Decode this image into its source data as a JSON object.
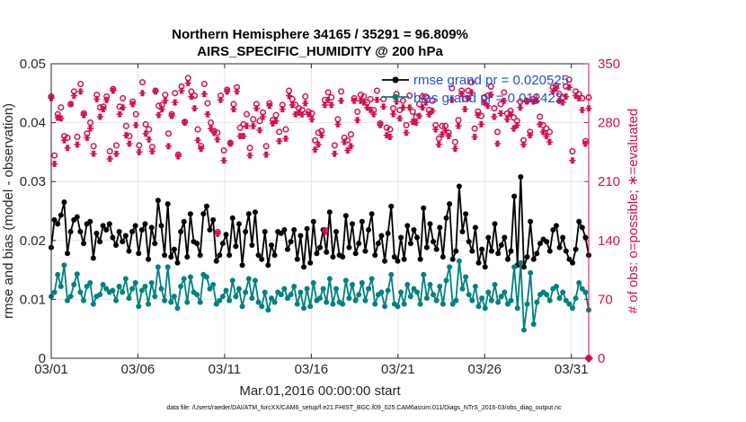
{
  "chart_data": {
    "type": "line",
    "title": "Northern Hemisphere 34165 / 35291 = 96.809%",
    "subtitle": "AIRS_SPECIFIC_HUMIDITY @ 200 hPa",
    "xlabel": "Mar.01,2016 00:00:00 start",
    "ylabel": "rmse and bias (model - observation)",
    "y2label": "# of obs: o=possible; ∗=evaluated",
    "xlim": [
      0,
      31
    ],
    "ylim": [
      0,
      0.05
    ],
    "y2lim": [
      0,
      350
    ],
    "x_ticks": [
      0,
      5,
      10,
      15,
      20,
      25,
      30
    ],
    "x_tick_labels": [
      "03/01",
      "03/06",
      "03/11",
      "03/16",
      "03/21",
      "03/26",
      "03/31"
    ],
    "y_tick_labels": [
      "0",
      "0.01",
      "0.02",
      "0.03",
      "0.04",
      "0.05"
    ],
    "y2_tick_labels": [
      "0",
      "70",
      "140",
      "210",
      "280",
      "350"
    ],
    "grid": true,
    "legend_position": "top-right",
    "series": [
      {
        "name": "rmse grand pr = 0.020525",
        "axis": "left",
        "color": "#000000",
        "marker": "filled-circle",
        "values": [
          0.0188,
          0.0235,
          0.0228,
          0.0243,
          0.0265,
          0.0178,
          0.0215,
          0.0235,
          0.024,
          0.0215,
          0.0195,
          0.0228,
          0.0232,
          0.017,
          0.0212,
          0.0198,
          0.0225,
          0.0218,
          0.0228,
          0.0205,
          0.0192,
          0.0215,
          0.0198,
          0.0208,
          0.0182,
          0.0215,
          0.0225,
          0.0178,
          0.0218,
          0.0228,
          0.0168,
          0.0222,
          0.0195,
          0.0268,
          0.0225,
          0.0175,
          0.0262,
          0.0172,
          0.0185,
          0.0162,
          0.0215,
          0.0232,
          0.0172,
          0.0245,
          0.0198,
          0.0195,
          0.0175,
          0.0245,
          0.0258,
          0.0218,
          0.0235,
          0.0165,
          0.0175,
          0.0195,
          0.021,
          0.0175,
          0.0238,
          0.019,
          0.0228,
          0.0158,
          0.0215,
          0.0245,
          0.0192,
          0.0248,
          0.0175,
          0.0168,
          0.0215,
          0.0158,
          0.0192,
          0.0175,
          0.0215,
          0.0212,
          0.0218,
          0.0185,
          0.0198,
          0.0218,
          0.0168,
          0.0208,
          0.0155,
          0.022,
          0.0162,
          0.0232,
          0.0178,
          0.0188,
          0.0218,
          0.018,
          0.0248,
          0.0172,
          0.0215,
          0.0175,
          0.0172,
          0.0242,
          0.0188,
          0.0228,
          0.0178,
          0.0195,
          0.0232,
          0.0182,
          0.0218,
          0.0245,
          0.0175,
          0.0195,
          0.0208,
          0.0165,
          0.0212,
          0.0258,
          0.0172,
          0.0165,
          0.0205,
          0.0168,
          0.0225,
          0.0195,
          0.0218,
          0.0205,
          0.0168,
          0.0255,
          0.0188,
          0.0228,
          0.0198,
          0.0185,
          0.0222,
          0.0172,
          0.0238,
          0.0262,
          0.0168,
          0.0182,
          0.0292,
          0.0215,
          0.0245,
          0.0198,
          0.0182,
          0.0222,
          0.0162,
          0.0185,
          0.0155,
          0.0205,
          0.0182,
          0.0228,
          0.0178,
          0.0192,
          0.0205,
          0.0168,
          0.0182,
          0.0275,
          0.0158,
          0.0308,
          0.0155,
          0.0172,
          0.0232,
          0.0168,
          0.0178,
          0.0195,
          0.0202,
          0.0198,
          0.0182,
          0.0218,
          0.0225,
          0.0188,
          0.0205,
          0.0182,
          0.0168,
          0.0162,
          0.0185,
          0.0232,
          0.0222,
          0.0205,
          0.0175
        ]
      },
      {
        "name": "bias grand pr = 0.011422",
        "axis": "left",
        "color": "#008080",
        "marker": "filled-circle",
        "values": [
          0.0105,
          0.0112,
          0.0142,
          0.0122,
          0.0158,
          0.0098,
          0.0105,
          0.0125,
          0.0143,
          0.0112,
          0.0098,
          0.0122,
          0.0128,
          0.0092,
          0.0105,
          0.0108,
          0.0125,
          0.0118,
          0.0112,
          0.0115,
          0.0098,
          0.0122,
          0.0112,
          0.0135,
          0.0102,
          0.0118,
          0.0128,
          0.0088,
          0.0115,
          0.0122,
          0.0092,
          0.0128,
          0.0105,
          0.0155,
          0.0118,
          0.0098,
          0.0155,
          0.0095,
          0.0105,
          0.0085,
          0.0122,
          0.0135,
          0.0095,
          0.0138,
          0.0112,
          0.0108,
          0.0095,
          0.0142,
          0.0138,
          0.0118,
          0.0125,
          0.0092,
          0.0098,
          0.0105,
          0.0115,
          0.0098,
          0.0132,
          0.0105,
          0.0118,
          0.0088,
          0.0112,
          0.0135,
          0.0102,
          0.0132,
          0.0095,
          0.0088,
          0.0112,
          0.0082,
          0.0102,
          0.0095,
          0.0112,
          0.0108,
          0.0118,
          0.0102,
          0.0108,
          0.0122,
          0.0092,
          0.0112,
          0.0085,
          0.0118,
          0.0088,
          0.0128,
          0.0098,
          0.0102,
          0.0118,
          0.0095,
          0.0135,
          0.0092,
          0.0118,
          0.0095,
          0.0092,
          0.0132,
          0.0102,
          0.0125,
          0.0098,
          0.0108,
          0.0128,
          0.0098,
          0.0118,
          0.0135,
          0.0092,
          0.0108,
          0.0112,
          0.0088,
          0.0115,
          0.0142,
          0.0092,
          0.0088,
          0.0112,
          0.0092,
          0.0125,
          0.0105,
          0.0118,
          0.0112,
          0.0092,
          0.0142,
          0.0102,
          0.0125,
          0.0108,
          0.0098,
          0.0122,
          0.0092,
          0.0132,
          0.0155,
          0.0092,
          0.0098,
          0.0165,
          0.0118,
          0.0138,
          0.0108,
          0.0098,
          0.0122,
          0.0088,
          0.0102,
          0.0085,
          0.0112,
          0.0098,
          0.0125,
          0.0095,
          0.0105,
          0.0112,
          0.0092,
          0.0098,
          0.0155,
          0.0085,
          0.0162,
          0.0048,
          0.0092,
          0.0145,
          0.0058,
          0.0095,
          0.0108,
          0.0112,
          0.0108,
          0.0098,
          0.0118,
          0.0122,
          0.0102,
          0.0112,
          0.0098,
          0.0092,
          0.0085,
          0.0102,
          0.0128,
          0.0118,
          0.0112,
          0.0082
        ]
      },
      {
        "name": "possible",
        "axis": "right",
        "color": "#d0104c",
        "marker": "open-circle",
        "values": [
          311,
          241,
          290,
          298,
          264,
          262,
          302,
          317,
          263,
          326,
          291,
          267,
          280,
          252,
          313,
          298,
          299,
          311,
          246,
          320,
          253,
          299,
          309,
          276,
          264,
          305,
          290,
          253,
          328,
          278,
          272,
          251,
          318,
          300,
          301,
          313,
          267,
          290,
          315,
          242,
          323,
          281,
          333,
          317,
          312,
          272,
          252,
          326,
          303,
          280,
          270,
          268,
          312,
          247,
          319,
          256,
          302,
          322,
          274,
          278,
          290,
          250,
          284,
          302,
          282,
          292,
          252,
          303,
          283,
          289,
          269,
          301,
          272,
          318,
          308,
          301,
          297,
          295,
          311,
          293,
          291,
          259,
          268,
          270,
          307,
          316,
          310,
          253,
          284,
          317,
          262,
          259,
          266,
          309,
          293,
          313,
          311,
          304,
          308,
          295,
          318,
          279,
          308,
          274,
          272,
          297,
          314,
          295,
          306,
          277,
          312,
          293,
          287,
          302,
          311,
          311,
          295,
          306,
          277,
          261,
          276,
          276,
          268,
          321,
          257,
          283,
          318,
          308,
          318,
          328,
          273,
          293,
          288,
          310,
          312,
          323,
          297,
          269,
          302,
          316,
          291,
          294,
          286,
          282,
          305,
          259,
          306,
          269,
          308,
          311,
          287,
          277,
          273,
          269,
          322,
          324,
          314,
          310,
          323,
          331,
          246,
          317,
          314,
          309,
          258,
          310
        ]
      },
      {
        "name": "evaluated",
        "axis": "right",
        "color": "#d0104c",
        "marker": "asterisk",
        "values": [
          309,
          231,
          286,
          285,
          259,
          250,
          302,
          312,
          254,
          317,
          289,
          262,
          273,
          243,
          308,
          287,
          296,
          307,
          237,
          318,
          243,
          290,
          298,
          265,
          255,
          302,
          277,
          245,
          315,
          267,
          260,
          246,
          317,
          289,
          296,
          306,
          252,
          288,
          304,
          240,
          318,
          280,
          327,
          311,
          297,
          259,
          249,
          314,
          290,
          273,
          268,
          260,
          307,
          235,
          317,
          255,
          296,
          317,
          264,
          264,
          276,
          241,
          276,
          297,
          271,
          287,
          242,
          300,
          279,
          282,
          258,
          296,
          261,
          312,
          301,
          290,
          292,
          290,
          303,
          290,
          284,
          248,
          254,
          265,
          301,
          307,
          301,
          243,
          278,
          306,
          257,
          247,
          252,
          306,
          283,
          306,
          304,
          298,
          295,
          290,
          307,
          277,
          299,
          265,
          263,
          290,
          305,
          285,
          298,
          268,
          298,
          281,
          280,
          288,
          298,
          304,
          290,
          294,
          272,
          254,
          266,
          271,
          264,
          307,
          249,
          276,
          314,
          296,
          309,
          316,
          263,
          289,
          278,
          304,
          300,
          313,
          287,
          255,
          291,
          306,
          284,
          290,
          273,
          277,
          298,
          254,
          305,
          265,
          305,
          306,
          278,
          269,
          264,
          257,
          317,
          321,
          306,
          304,
          311,
          322,
          235,
          312,
          309,
          295,
          255,
          297
        ]
      },
      {
        "name": "possible-outlier",
        "axis": "right",
        "color": "#d0104c",
        "marker": "open-circle",
        "x": [
          9.6,
          15.8
        ],
        "values": [
          150,
          152
        ]
      },
      {
        "name": "evaluated-outlier",
        "axis": "right",
        "color": "#d0104c",
        "marker": "asterisk",
        "x": [
          9.6,
          15.8
        ],
        "values": [
          148,
          150
        ]
      }
    ],
    "legend": [
      {
        "label": "rmse grand pr = 0.020525",
        "color": "#000000"
      },
      {
        "label": "bias grand pr = 0.011422",
        "color": "#008080"
      }
    ],
    "footnote": "data file: /Users/raeder/DAI/ATM_forcXX/CAM6_setup/f.e21.FHIST_BGC.f09_025.CAM6assim.011/Diags_NTrS_2016-03/obs_diag_output.nc"
  }
}
